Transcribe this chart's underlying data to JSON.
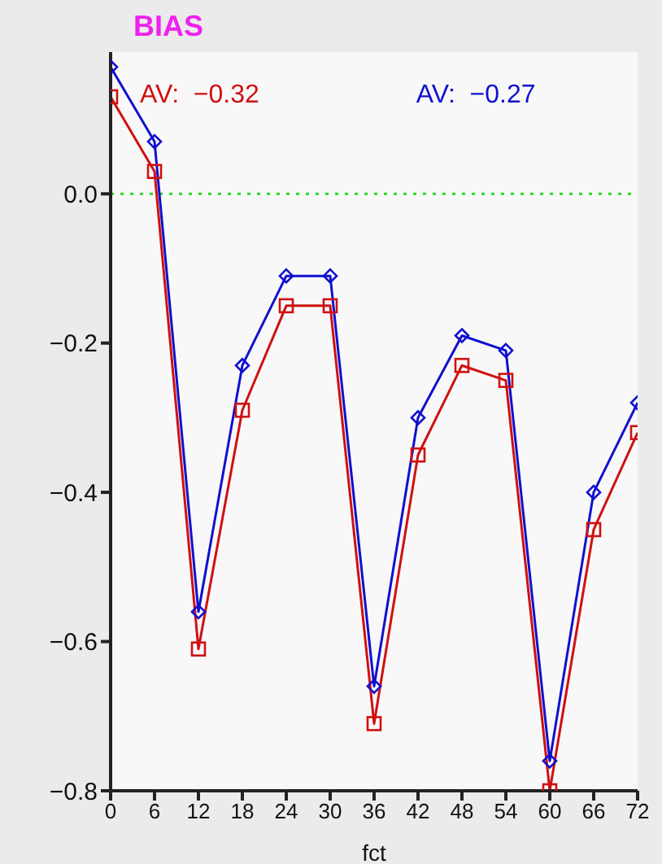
{
  "chart_data": {
    "type": "line",
    "title": "BIAS",
    "xlabel": "fct",
    "x": [
      0,
      6,
      12,
      18,
      24,
      30,
      36,
      42,
      48,
      54,
      60,
      66,
      72
    ],
    "series": [
      {
        "color": "#d01010",
        "marker": "square",
        "values": [
          0.13,
          0.03,
          -0.61,
          -0.29,
          -0.15,
          -0.15,
          -0.71,
          -0.35,
          -0.23,
          -0.25,
          -0.8,
          -0.45,
          -0.32
        ]
      },
      {
        "color": "#1010d0",
        "marker": "diamond",
        "values": [
          0.17,
          0.07,
          -0.56,
          -0.23,
          -0.11,
          -0.11,
          -0.66,
          -0.3,
          -0.19,
          -0.21,
          -0.76,
          -0.4,
          -0.28
        ]
      }
    ],
    "annotations": [
      "AV:  −0.32",
      "AV:  −0.27"
    ],
    "xlim": [
      0,
      72
    ],
    "xticks": [
      0,
      6,
      12,
      18,
      24,
      30,
      36,
      42,
      48,
      54,
      60,
      66,
      72
    ],
    "ylim": [
      -0.8,
      0.19
    ],
    "yticks": [
      {
        "value": -0.8,
        "label": "−0.8"
      },
      {
        "value": -0.6,
        "label": "−0.6"
      },
      {
        "value": -0.4,
        "label": "−0.4"
      },
      {
        "value": -0.2,
        "label": "−0.2"
      },
      {
        "value": 0,
        "label": "0.0"
      }
    ],
    "ref_lines": [
      {
        "axis": "y",
        "value": 0,
        "color": "#22dd22",
        "line_style": "dotted"
      }
    ],
    "line_style": "solid"
  }
}
